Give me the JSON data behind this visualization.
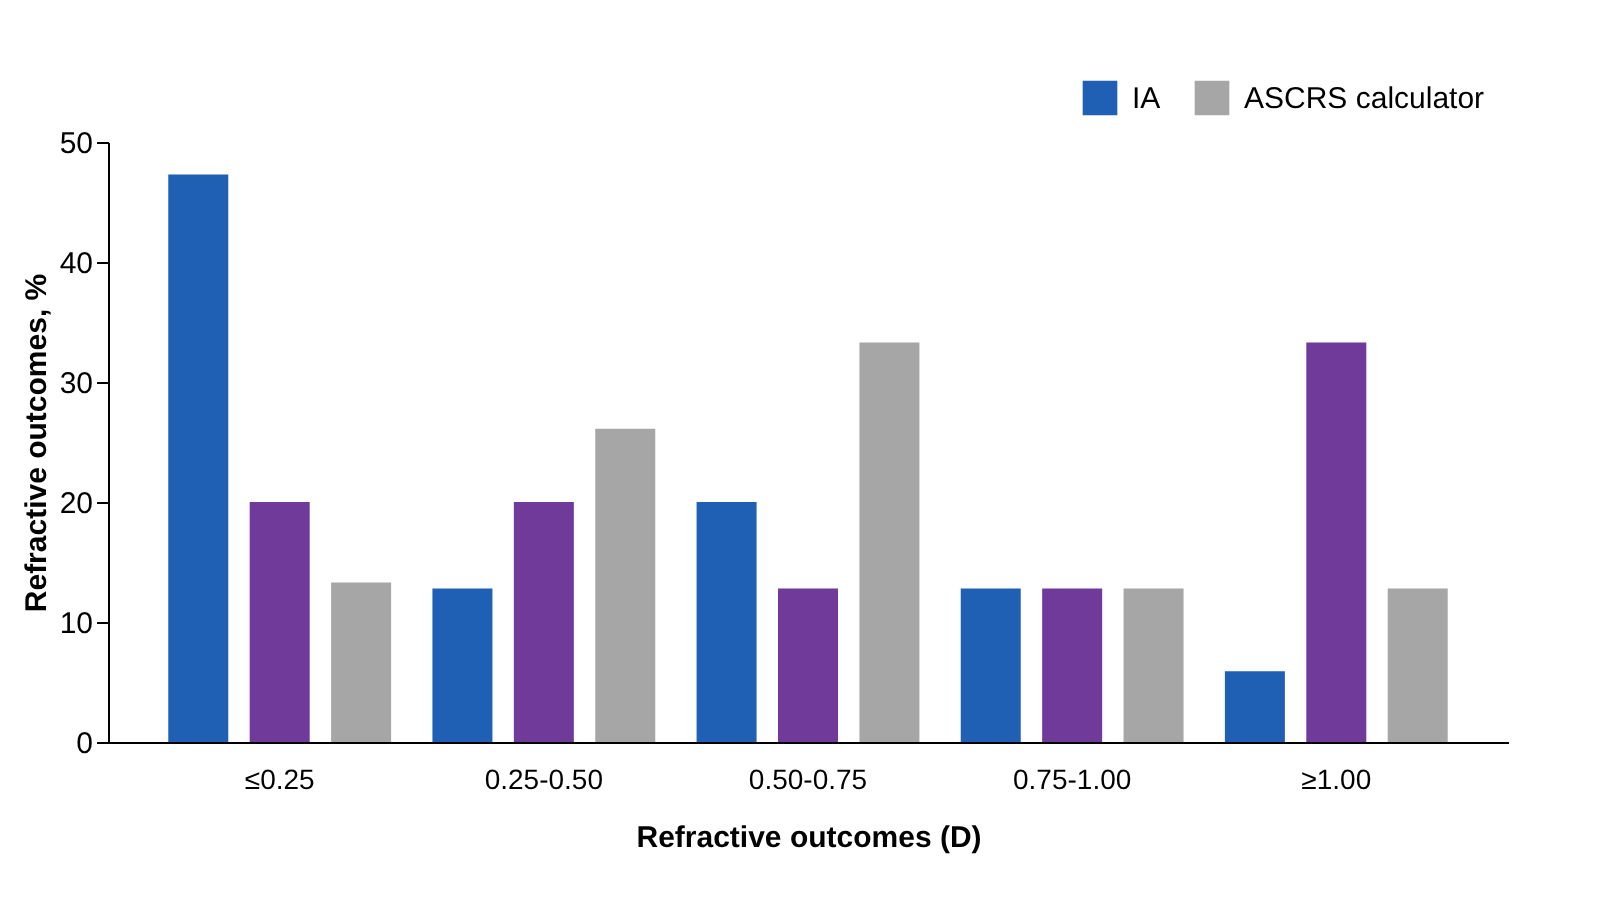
{
  "chart_data": {
    "type": "bar",
    "xlabel": "Refractive outcomes (D)",
    "ylabel": "Refractive outcomes, %",
    "categories": [
      "≤0.25",
      "0.25-0.50",
      "0.50-0.75",
      "0.75-1.00",
      "≥1.00"
    ],
    "series": [
      {
        "name": "IA",
        "color": "#1f5fb4",
        "values": [
          47.3,
          12.8,
          20,
          12.8,
          5.9
        ]
      },
      {
        "color": "#6f3a9a",
        "values": [
          20,
          20,
          12.8,
          12.8,
          33.3
        ]
      },
      {
        "name": "ASCRS calculator",
        "color": "#a6a6a6",
        "values": [
          13.3,
          26.1,
          33.3,
          12.8,
          12.8
        ]
      }
    ],
    "ylim": [
      0,
      50
    ],
    "yticks": [
      0,
      10,
      20,
      30,
      40,
      50
    ],
    "grid": false,
    "legend": "top right"
  }
}
